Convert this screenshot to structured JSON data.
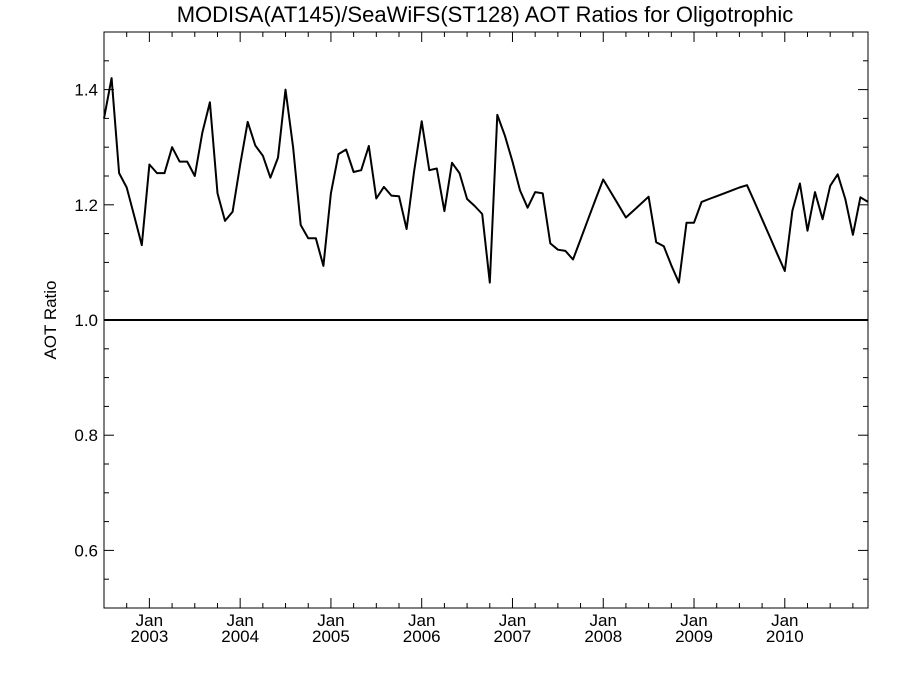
{
  "chart_data": {
    "type": "line",
    "title": "MODISA(AT145)/SeaWiFS(ST128)  AOT Ratios for Oligotrophic",
    "ylabel": "AOT Ratio",
    "xlabel": "",
    "ylim": [
      0.5,
      1.5
    ],
    "xlim": [
      "2002-07-01",
      "2010-12-01"
    ],
    "yticks": [
      0.6,
      0.8,
      1.0,
      1.2,
      1.4
    ],
    "ytick_labels": [
      "0.6",
      "0.8",
      "1.0",
      "1.2",
      "1.4"
    ],
    "xticks": [
      {
        "date": "2003-01-01",
        "month": "Jan",
        "year": "2003"
      },
      {
        "date": "2004-01-01",
        "month": "Jan",
        "year": "2004"
      },
      {
        "date": "2005-01-01",
        "month": "Jan",
        "year": "2005"
      },
      {
        "date": "2006-01-01",
        "month": "Jan",
        "year": "2006"
      },
      {
        "date": "2007-01-01",
        "month": "Jan",
        "year": "2007"
      },
      {
        "date": "2008-01-01",
        "month": "Jan",
        "year": "2008"
      },
      {
        "date": "2009-01-01",
        "month": "Jan",
        "year": "2009"
      },
      {
        "date": "2010-01-01",
        "month": "Jan",
        "year": "2010"
      }
    ],
    "reference_line": 1.0,
    "grid": false,
    "series": [
      {
        "name": "",
        "color": "#000000",
        "x": [
          "2002-07",
          "2002-08",
          "2002-09",
          "2002-10",
          "2002-11",
          "2002-12",
          "2003-01",
          "2003-02",
          "2003-03",
          "2003-04",
          "2003-05",
          "2003-06",
          "2003-07",
          "2003-08",
          "2003-09",
          "2003-10",
          "2003-11",
          "2003-12",
          "2004-01",
          "2004-02",
          "2004-03",
          "2004-04",
          "2004-05",
          "2004-06",
          "2004-07",
          "2004-08",
          "2004-09",
          "2004-10",
          "2004-11",
          "2004-12",
          "2005-01",
          "2005-02",
          "2005-03",
          "2005-04",
          "2005-05",
          "2005-06",
          "2005-07",
          "2005-08",
          "2005-09",
          "2005-10",
          "2005-11",
          "2005-12",
          "2006-01",
          "2006-02",
          "2006-03",
          "2006-04",
          "2006-05",
          "2006-06",
          "2006-07",
          "2006-08",
          "2006-09",
          "2006-10",
          "2006-11",
          "2006-12",
          "2007-01",
          "2007-02",
          "2007-03",
          "2007-04",
          "2007-05",
          "2007-06",
          "2007-07",
          "2007-08",
          "2007-09",
          "2007-10",
          "2007-11",
          "2007-12",
          "2008-01",
          "2008-02",
          "2008-03",
          "2008-04",
          "2008-05",
          "2008-06",
          "2008-07",
          "2008-08",
          "2008-09",
          "2008-10",
          "2008-11",
          "2008-12",
          "2009-01",
          "2009-02",
          "2009-03",
          "2009-04",
          "2009-05",
          "2009-06",
          "2009-07",
          "2009-08",
          "2009-09",
          "2009-10",
          "2009-11",
          "2009-12",
          "2010-01",
          "2010-02",
          "2010-03",
          "2010-04",
          "2010-05",
          "2010-06",
          "2010-07",
          "2010-08",
          "2010-09",
          "2010-10",
          "2010-11",
          "2010-12"
        ],
        "values": [
          1.35,
          1.42,
          1.255,
          1.23,
          1.18,
          1.13,
          1.27,
          1.255,
          1.255,
          1.3,
          1.275,
          1.275,
          1.25,
          1.325,
          1.378,
          1.22,
          1.172,
          1.188,
          1.27,
          1.344,
          1.303,
          1.285,
          1.247,
          1.282,
          1.4,
          1.3,
          1.165,
          1.142,
          1.142,
          1.094,
          1.22,
          1.288,
          1.296,
          1.257,
          1.26,
          1.302,
          1.211,
          1.231,
          1.216,
          1.215,
          1.158,
          1.258,
          1.345,
          1.26,
          1.263,
          1.189,
          1.273,
          1.255,
          1.21,
          1.198,
          1.184,
          1.065,
          1.356,
          1.32,
          1.275,
          1.225,
          1.195,
          1.222,
          1.22,
          1.133,
          1.122,
          1.12,
          1.105,
          1.14,
          1.175,
          1.21,
          1.244,
          1.222,
          1.2,
          1.178,
          1.19,
          1.202,
          1.214,
          1.135,
          1.128,
          1.095,
          1.065,
          1.169,
          1.169,
          1.205,
          1.21,
          1.215,
          1.22,
          1.225,
          1.23,
          1.234,
          1.205,
          1.175,
          1.145,
          1.115,
          1.085,
          1.19,
          1.237,
          1.155,
          1.222,
          1.175,
          1.233,
          1.253,
          1.21,
          1.148,
          1.213,
          1.205
        ]
      }
    ]
  }
}
